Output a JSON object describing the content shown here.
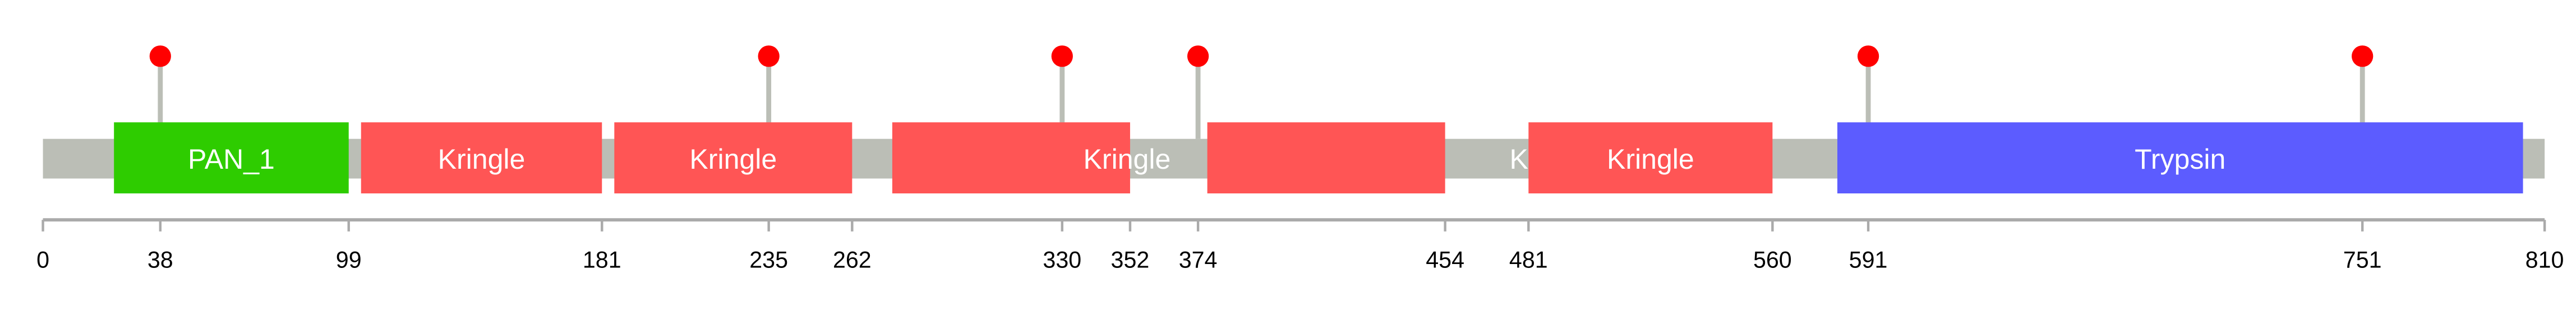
{
  "chart_data": {
    "type": "protein-domain-diagram",
    "sequence_length": 810,
    "colors": {
      "backbone": "#BBBEB6",
      "axis": "#AAAAAA",
      "lollipop_stem": "#BBBEB6",
      "lollipop_head": "#FF0000",
      "label": "#FFFFFF",
      "tick_label": "#000000"
    },
    "domains": [
      {
        "name": "PAN_1",
        "start": 23,
        "end": 99,
        "color": "#2ECC00",
        "label_center": 61
      },
      {
        "name": "Kringle",
        "start": 103,
        "end": 181,
        "color": "#FF5555",
        "label_center": 142
      },
      {
        "name": "Kringle",
        "start": 185,
        "end": 262,
        "color": "#FF5555",
        "label_center": 223.5
      },
      {
        "name": "Kringle",
        "start": 275,
        "end": 352,
        "color": "#FF5555",
        "label_center": 351
      },
      {
        "name": "Kringle",
        "start": 377,
        "end": 454,
        "color": "#FF5555",
        "label_center": 489
      },
      {
        "name": "Kringle",
        "start": 481,
        "end": 560,
        "color": "#FF5555",
        "label_center": 520.5
      },
      {
        "name": "Trypsin",
        "start": 581,
        "end": 803,
        "color": "#5C5CFF",
        "label_center": 692
      }
    ],
    "mutations": [
      38,
      235,
      330,
      374,
      591,
      751
    ],
    "ticks": [
      0,
      38,
      99,
      181,
      235,
      262,
      330,
      352,
      374,
      454,
      481,
      560,
      591,
      751,
      810
    ]
  }
}
